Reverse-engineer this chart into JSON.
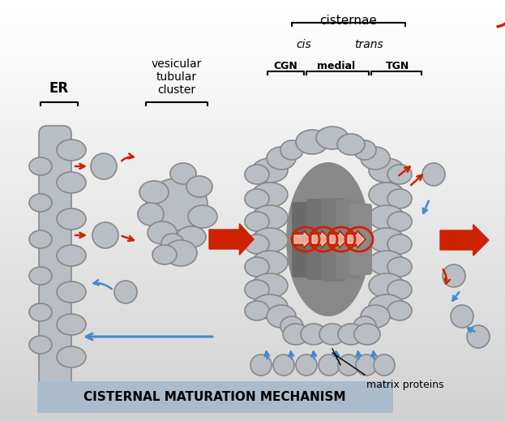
{
  "bg_color_top": "#ffffff",
  "bg_color_bottom": "#d8d8d8",
  "title_box_color": "#aabbcc",
  "title_text": "CISTERNAL MATURATION MECHANISM",
  "title_fontsize": 11,
  "label_er": "ER",
  "label_vtc": "vesicular\ntubular\ncluster",
  "label_cgn": "CGN",
  "label_medial": "medial",
  "label_tgn": "TGN",
  "label_cis": "cis",
  "label_trans": "trans",
  "label_cisternae": "cisternae",
  "label_matrix": "matrix proteins",
  "blob_color": "#b8bec4",
  "blob_edge": "#888888",
  "dark_golgi": "#707070",
  "red_color": "#cc2200",
  "blue_color": "#4488cc",
  "white": "#ffffff"
}
